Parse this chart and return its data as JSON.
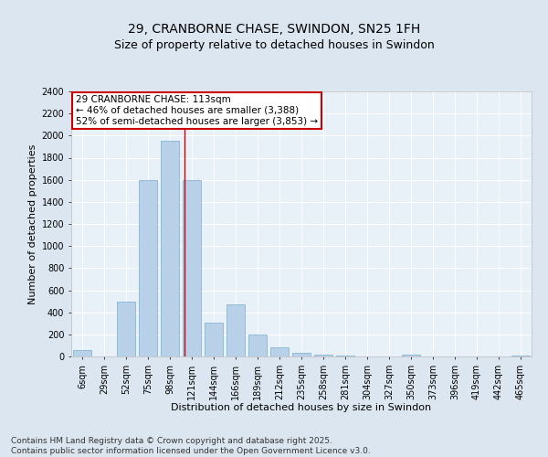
{
  "title": "29, CRANBORNE CHASE, SWINDON, SN25 1FH",
  "subtitle": "Size of property relative to detached houses in Swindon",
  "xlabel": "Distribution of detached houses by size in Swindon",
  "ylabel": "Number of detached properties",
  "categories": [
    "6sqm",
    "29sqm",
    "52sqm",
    "75sqm",
    "98sqm",
    "121sqm",
    "144sqm",
    "166sqm",
    "189sqm",
    "212sqm",
    "235sqm",
    "258sqm",
    "281sqm",
    "304sqm",
    "327sqm",
    "350sqm",
    "373sqm",
    "396sqm",
    "419sqm",
    "442sqm",
    "465sqm"
  ],
  "values": [
    55,
    0,
    500,
    1600,
    1950,
    1600,
    305,
    470,
    200,
    80,
    30,
    20,
    10,
    0,
    0,
    15,
    0,
    0,
    0,
    0,
    10
  ],
  "bar_color": "#b8d0e8",
  "bar_edge_color": "#7aaed0",
  "vline_x": 4.65,
  "vline_color": "#cc0000",
  "annotation_title": "29 CRANBORNE CHASE: 113sqm",
  "annotation_line1": "← 46% of detached houses are smaller (3,388)",
  "annotation_line2": "52% of semi-detached houses are larger (3,853) →",
  "annotation_box_color": "#ffffff",
  "annotation_box_edge": "#cc0000",
  "ylim": [
    0,
    2400
  ],
  "yticks": [
    0,
    200,
    400,
    600,
    800,
    1000,
    1200,
    1400,
    1600,
    1800,
    2000,
    2200,
    2400
  ],
  "bg_color": "#dce6f0",
  "plot_bg_color": "#e8f0f8",
  "grid_color": "#ffffff",
  "footer": "Contains HM Land Registry data © Crown copyright and database right 2025.\nContains public sector information licensed under the Open Government Licence v3.0.",
  "title_fontsize": 10,
  "subtitle_fontsize": 9,
  "axis_label_fontsize": 8,
  "tick_fontsize": 7,
  "footer_fontsize": 6.5
}
